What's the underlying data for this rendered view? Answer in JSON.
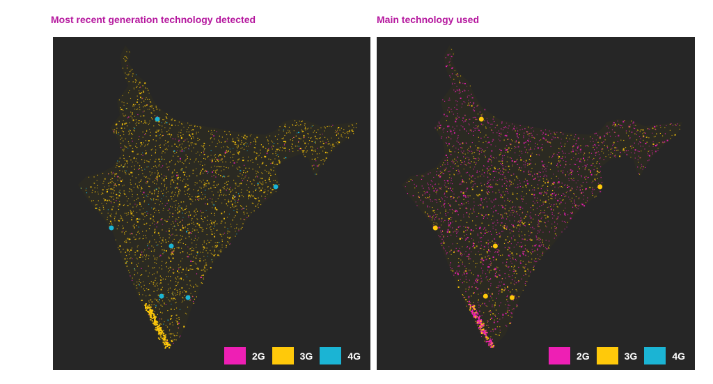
{
  "colors": {
    "background": "#262626",
    "title": "#b5179e",
    "g2": "#ee1fb4",
    "g3": "#ffc90a",
    "g4": "#1bb4d4"
  },
  "panels": [
    {
      "title": "Most recent generation technology detected",
      "mix": {
        "2G": 0.06,
        "3G": 0.9,
        "4G": 0.04
      },
      "hotspots_4g": [
        "Delhi",
        "Kolkata",
        "Mumbai",
        "Hyderabad",
        "Bengaluru",
        "Chennai"
      ],
      "legend": [
        {
          "label": "2G",
          "color": "#ee1fb4"
        },
        {
          "label": "3G",
          "color": "#ffc90a"
        },
        {
          "label": "4G",
          "color": "#1bb4d4"
        }
      ]
    },
    {
      "title": "Main technology used",
      "mix": {
        "2G": 0.62,
        "3G": 0.38,
        "4G": 0.0
      },
      "legend": [
        {
          "label": "2G",
          "color": "#ee1fb4"
        },
        {
          "label": "3G",
          "color": "#ffc90a"
        },
        {
          "label": "4G",
          "color": "#1bb4d4"
        }
      ]
    }
  ]
}
